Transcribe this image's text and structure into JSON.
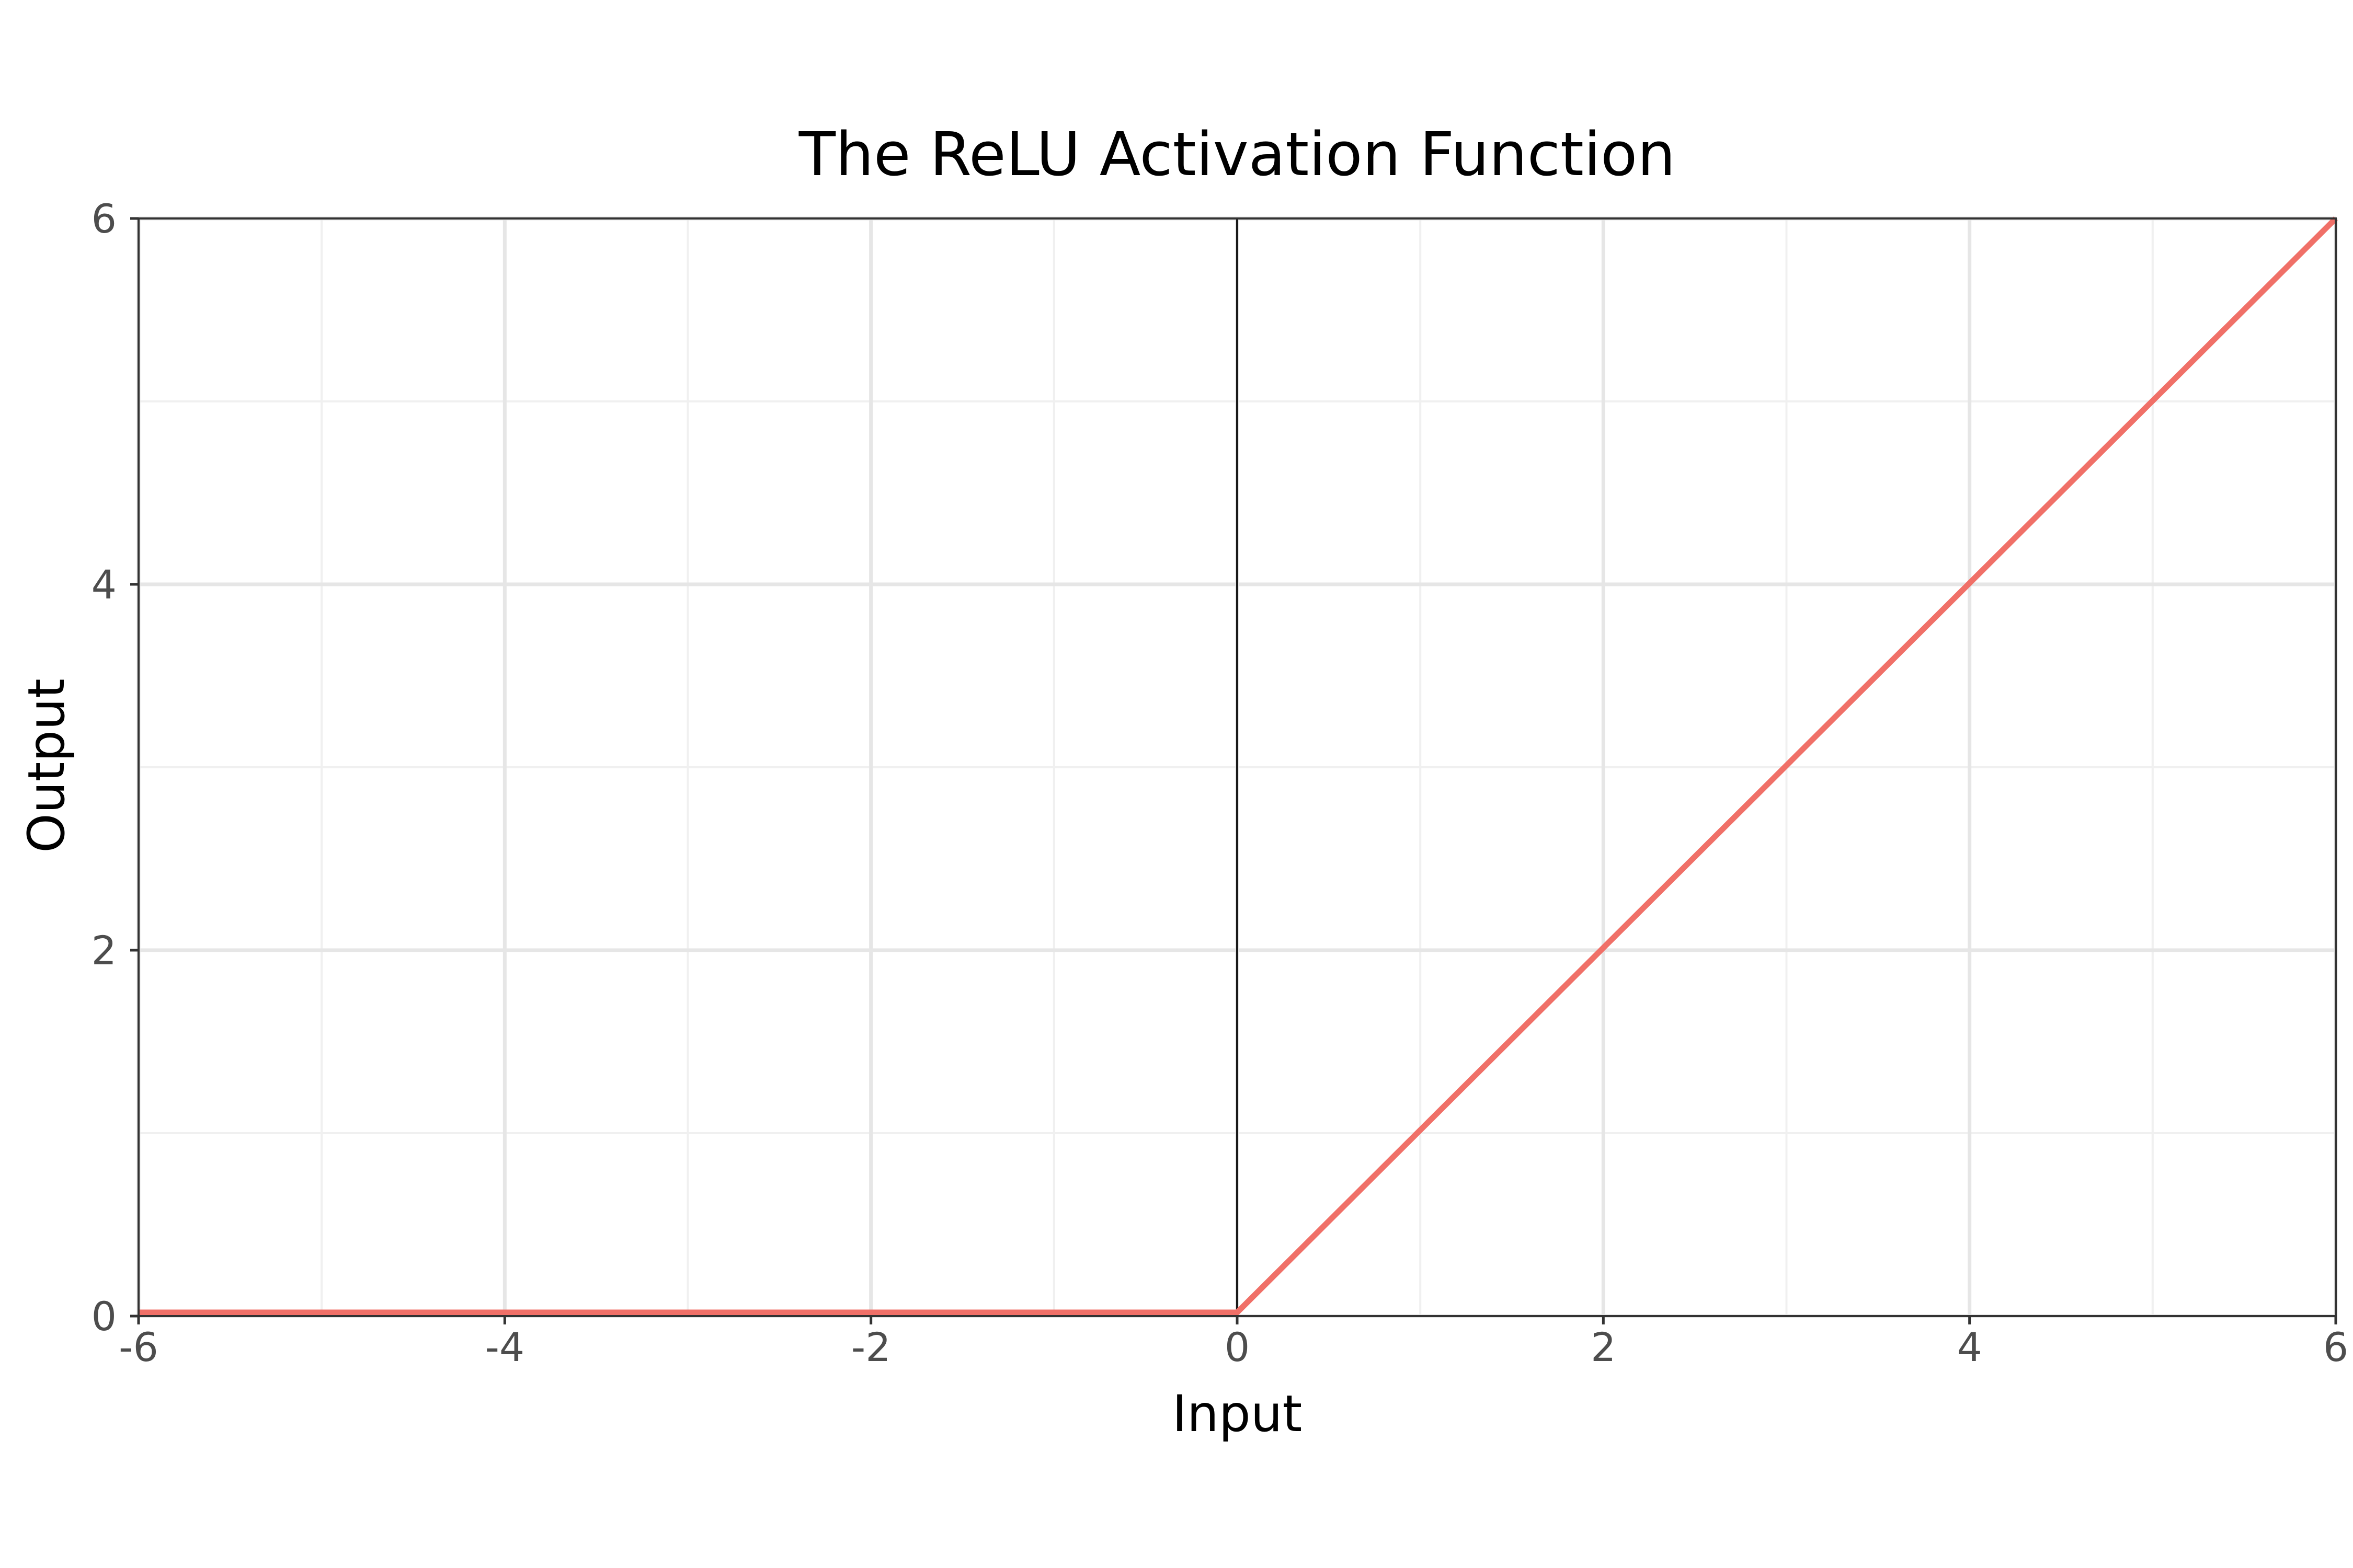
{
  "chart_data": {
    "type": "line",
    "title": "The ReLU Activation Function",
    "xlabel": "Input",
    "ylabel": "Output",
    "xlim": [
      -6,
      6
    ],
    "ylim": [
      0,
      6
    ],
    "x_major_ticks": [
      -6,
      -4,
      -2,
      0,
      2,
      4,
      6
    ],
    "x_tick_labels": [
      "-6",
      "-4",
      "-2",
      "0",
      "2",
      "4",
      "6"
    ],
    "y_major_ticks": [
      0,
      2,
      4,
      6
    ],
    "y_tick_labels": [
      "0",
      "2",
      "4",
      "6"
    ],
    "x_minor_ticks": [
      -5,
      -3,
      -1,
      1,
      3,
      5
    ],
    "y_minor_ticks": [
      1,
      3,
      5
    ],
    "grid": true,
    "vertical_reference_line_x": 0,
    "series": [
      {
        "color": "#f07068",
        "points": [
          {
            "x": -6,
            "y": 0
          },
          {
            "x": 0,
            "y": 0
          },
          {
            "x": 6,
            "y": 6
          }
        ]
      }
    ]
  },
  "colors": {
    "background": "#ffffff",
    "grid_major": "#e6e6e6",
    "grid_minor": "#f0f0f0",
    "panel_border": "#333333",
    "reference_line": "#1a1a1a",
    "tick_text": "#4d4d4d",
    "title_text": "#000000"
  }
}
